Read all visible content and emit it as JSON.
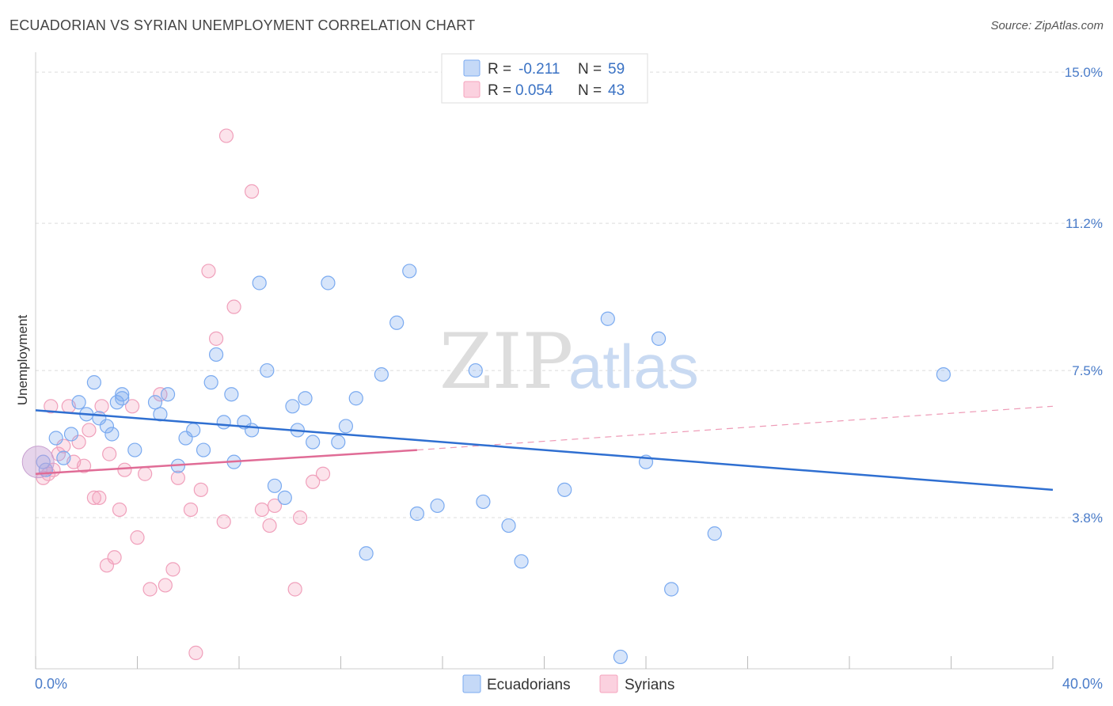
{
  "title": "ECUADORIAN VS SYRIAN UNEMPLOYMENT CORRELATION CHART",
  "source": "Source: ZipAtlas.com",
  "watermark": {
    "zip": "ZIP",
    "atlas": "atlas"
  },
  "legend": {
    "r_label": "R =",
    "n_label": "N =",
    "rows": [
      {
        "r": "-0.211",
        "n": "59",
        "color": "#7aaaf0"
      },
      {
        "r": "0.054",
        "n": "43",
        "color": "#f5a3bd"
      }
    ]
  },
  "chart_data": {
    "type": "scatter",
    "title": "ECUADORIAN VS SYRIAN UNEMPLOYMENT CORRELATION CHART",
    "xlabel": "",
    "ylabel": "Unemployment",
    "xlim": [
      0,
      40
    ],
    "ylim": [
      0,
      15.5
    ],
    "x_tick_labels": [
      "0.0%",
      "40.0%"
    ],
    "y_ticks": [
      3.8,
      7.5,
      11.2,
      15.0
    ],
    "y_tick_labels": [
      "3.8%",
      "7.5%",
      "11.2%",
      "15.0%"
    ],
    "grid": true,
    "legend_position": "top-center",
    "series": [
      {
        "name": "Ecuadorians",
        "color": "#7aaaf0",
        "trend": {
          "x": [
            0,
            40
          ],
          "y": [
            6.5,
            4.5
          ]
        },
        "points": [
          [
            0.8,
            5.8
          ],
          [
            1.4,
            5.9
          ],
          [
            1.7,
            6.7
          ],
          [
            2.0,
            6.4
          ],
          [
            2.3,
            7.2
          ],
          [
            2.5,
            6.3
          ],
          [
            2.8,
            6.1
          ],
          [
            3.0,
            5.9
          ],
          [
            3.2,
            6.7
          ],
          [
            3.4,
            6.8
          ],
          [
            3.9,
            5.5
          ],
          [
            4.7,
            6.7
          ],
          [
            4.9,
            6.4
          ],
          [
            5.2,
            6.9
          ],
          [
            5.6,
            5.1
          ],
          [
            5.9,
            5.8
          ],
          [
            6.2,
            6.0
          ],
          [
            6.6,
            5.5
          ],
          [
            6.9,
            7.2
          ],
          [
            7.1,
            7.9
          ],
          [
            7.4,
            6.2
          ],
          [
            7.7,
            6.9
          ],
          [
            7.8,
            5.2
          ],
          [
            8.2,
            6.2
          ],
          [
            8.5,
            6.0
          ],
          [
            8.8,
            9.7
          ],
          [
            9.1,
            7.5
          ],
          [
            9.4,
            4.6
          ],
          [
            9.8,
            4.3
          ],
          [
            10.1,
            6.6
          ],
          [
            10.3,
            6.0
          ],
          [
            10.6,
            6.8
          ],
          [
            10.9,
            5.7
          ],
          [
            11.5,
            9.7
          ],
          [
            11.9,
            5.7
          ],
          [
            12.2,
            6.1
          ],
          [
            12.6,
            6.8
          ],
          [
            13.0,
            2.9
          ],
          [
            13.6,
            7.4
          ],
          [
            14.2,
            8.7
          ],
          [
            14.7,
            10.0
          ],
          [
            15.0,
            3.9
          ],
          [
            15.8,
            4.1
          ],
          [
            17.3,
            7.5
          ],
          [
            17.6,
            4.2
          ],
          [
            18.6,
            3.6
          ],
          [
            19.1,
            2.7
          ],
          [
            20.8,
            4.5
          ],
          [
            22.5,
            8.8
          ],
          [
            23.0,
            0.3
          ],
          [
            24.0,
            5.2
          ],
          [
            24.5,
            8.3
          ],
          [
            25.0,
            2.0
          ],
          [
            26.7,
            3.4
          ],
          [
            35.7,
            7.4
          ],
          [
            0.4,
            5.0
          ],
          [
            1.1,
            5.3
          ],
          [
            3.4,
            6.9
          ],
          [
            0.3,
            5.2
          ]
        ]
      },
      {
        "name": "Syrians",
        "color": "#f5a3bd",
        "trend": {
          "x": [
            0,
            15
          ],
          "y": [
            4.9,
            5.5
          ]
        },
        "trend_extended": {
          "x": [
            15,
            40
          ],
          "y": [
            5.5,
            6.6
          ]
        },
        "points": [
          [
            0.3,
            4.8
          ],
          [
            0.5,
            4.9
          ],
          [
            0.7,
            5.0
          ],
          [
            0.9,
            5.4
          ],
          [
            1.1,
            5.6
          ],
          [
            1.3,
            6.6
          ],
          [
            1.5,
            5.2
          ],
          [
            1.7,
            5.7
          ],
          [
            1.9,
            5.1
          ],
          [
            2.1,
            6.0
          ],
          [
            2.3,
            4.3
          ],
          [
            2.5,
            4.3
          ],
          [
            2.6,
            6.6
          ],
          [
            2.8,
            2.6
          ],
          [
            2.9,
            5.4
          ],
          [
            3.1,
            2.8
          ],
          [
            3.3,
            4.0
          ],
          [
            3.5,
            5.0
          ],
          [
            3.8,
            6.6
          ],
          [
            4.0,
            3.3
          ],
          [
            4.3,
            4.9
          ],
          [
            4.5,
            2.0
          ],
          [
            4.9,
            6.9
          ],
          [
            5.1,
            2.1
          ],
          [
            5.4,
            2.5
          ],
          [
            5.6,
            4.8
          ],
          [
            6.1,
            4.0
          ],
          [
            6.3,
            0.4
          ],
          [
            6.5,
            4.5
          ],
          [
            6.8,
            10.0
          ],
          [
            7.1,
            8.3
          ],
          [
            7.4,
            3.7
          ],
          [
            7.5,
            13.4
          ],
          [
            7.8,
            9.1
          ],
          [
            8.5,
            12.0
          ],
          [
            8.9,
            4.0
          ],
          [
            9.2,
            3.6
          ],
          [
            9.4,
            4.1
          ],
          [
            10.2,
            2.0
          ],
          [
            10.4,
            3.8
          ],
          [
            10.9,
            4.7
          ],
          [
            11.3,
            4.9
          ],
          [
            0.6,
            6.6
          ]
        ]
      }
    ]
  }
}
